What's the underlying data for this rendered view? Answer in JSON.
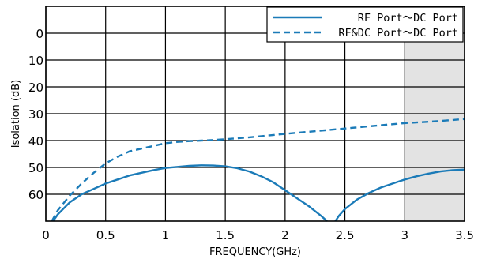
{
  "chart_data": {
    "type": "line",
    "xlabel": "FREQUENCY(GHz)",
    "ylabel": "Isolation (dB)",
    "xlim": [
      0,
      3.5
    ],
    "ylim": [
      -10,
      70
    ],
    "y_inverted": true,
    "x_ticks": [
      0,
      0.5,
      1,
      1.5,
      2,
      2.5,
      3,
      3.5
    ],
    "x_tick_labels": [
      "0",
      "0.5",
      "1",
      "1.5",
      "2",
      "2.5",
      "3",
      "3.5"
    ],
    "y_ticks": [
      0,
      10,
      20,
      30,
      40,
      50,
      60
    ],
    "y_tick_labels": [
      "0",
      "10",
      "20",
      "30",
      "40",
      "50",
      "60"
    ],
    "grid": true,
    "legend_position": "top-right",
    "shaded_region": {
      "x_from": 3.0,
      "x_to": 3.5,
      "color": "#e3e3e3"
    },
    "series": [
      {
        "name": "RF Port～DC Port",
        "style": "solid",
        "color": "#1b7bb8",
        "segments": [
          [
            [
              0.06,
              70
            ],
            [
              0.1,
              67.5
            ],
            [
              0.2,
              63
            ],
            [
              0.3,
              60
            ],
            [
              0.4,
              58
            ],
            [
              0.5,
              56
            ],
            [
              0.6,
              54.5
            ],
            [
              0.7,
              53
            ],
            [
              0.8,
              52
            ],
            [
              0.9,
              51
            ],
            [
              1.0,
              50.2
            ],
            [
              1.1,
              49.8
            ],
            [
              1.2,
              49.4
            ],
            [
              1.3,
              49.2
            ],
            [
              1.4,
              49.3
            ],
            [
              1.5,
              49.6
            ],
            [
              1.6,
              50.3
            ],
            [
              1.7,
              51.5
            ],
            [
              1.8,
              53.3
            ],
            [
              1.9,
              55.5
            ],
            [
              2.0,
              58.5
            ],
            [
              2.1,
              61.5
            ],
            [
              2.2,
              64.5
            ],
            [
              2.3,
              68
            ],
            [
              2.35,
              70
            ]
          ],
          [
            [
              2.42,
              70
            ],
            [
              2.45,
              68
            ],
            [
              2.5,
              65.5
            ],
            [
              2.6,
              62
            ],
            [
              2.7,
              59.5
            ],
            [
              2.8,
              57.5
            ],
            [
              2.9,
              56
            ],
            [
              3.0,
              54.5
            ],
            [
              3.1,
              53.3
            ],
            [
              3.2,
              52.3
            ],
            [
              3.3,
              51.5
            ],
            [
              3.4,
              51
            ],
            [
              3.5,
              50.8
            ]
          ]
        ]
      },
      {
        "name": "RF&DC Port～DC Port",
        "style": "dashed",
        "color": "#1b7bb8",
        "segments": [
          [
            [
              0.05,
              70
            ],
            [
              0.1,
              66
            ],
            [
              0.2,
              60.5
            ],
            [
              0.3,
              56
            ],
            [
              0.4,
              52
            ],
            [
              0.5,
              48.5
            ],
            [
              0.6,
              46
            ],
            [
              0.7,
              44
            ],
            [
              0.8,
              43
            ],
            [
              0.9,
              42
            ],
            [
              1.0,
              41
            ],
            [
              1.1,
              40.5
            ],
            [
              1.2,
              40.2
            ],
            [
              1.3,
              40
            ],
            [
              1.4,
              39.8
            ],
            [
              1.5,
              39.5
            ],
            [
              1.7,
              38.8
            ],
            [
              2.0,
              37.5
            ],
            [
              2.2,
              36.7
            ],
            [
              2.5,
              35.5
            ],
            [
              2.8,
              34.3
            ],
            [
              3.0,
              33.5
            ],
            [
              3.2,
              33
            ],
            [
              3.5,
              32
            ]
          ]
        ]
      }
    ]
  }
}
